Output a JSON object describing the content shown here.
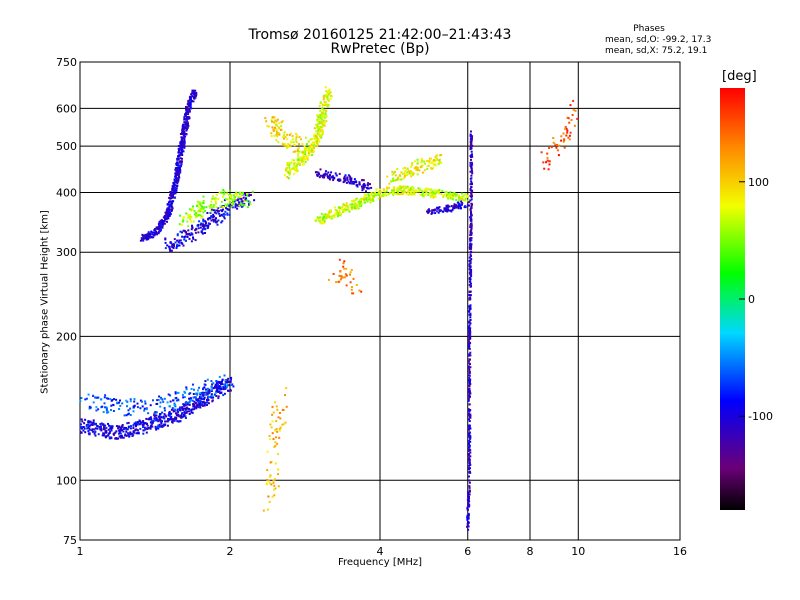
{
  "title": {
    "line1": "Tromsø 20160125 21:42:00–21:43:43",
    "line2": "RwPretec (Bp)"
  },
  "phase_stats": {
    "title": "Phases",
    "line_o": "mean, sd,O: -99.2, 17.3",
    "line_x": "mean, sd,X:  75.2, 19.1"
  },
  "colorbar": {
    "unit_label": "[deg]",
    "tick_labels": [
      "100",
      "0",
      "-100"
    ],
    "tick_values": [
      100,
      0,
      -100
    ],
    "range": [
      -180,
      180
    ],
    "colormap": "rainbow (black-purple-blue-cyan-green-yellow-red)"
  },
  "chart_data": {
    "type": "scatter",
    "xlabel": "Frequency [MHz]",
    "ylabel": "Stationary phase Virtual Height [km]",
    "xscale": "log",
    "yscale": "log",
    "xlim": [
      1,
      16
    ],
    "ylim": [
      75,
      750
    ],
    "x_ticks": [
      1,
      2,
      4,
      6,
      8,
      10,
      16
    ],
    "x_tick_labels": [
      "1",
      "2",
      "4",
      "6",
      "8",
      "10",
      "16"
    ],
    "y_ticks": [
      75,
      100,
      200,
      300,
      400,
      500,
      600,
      750
    ],
    "y_tick_labels": [
      "75",
      "100",
      "200",
      "300",
      "400",
      "500",
      "600",
      "750"
    ],
    "grid": true,
    "color_encodes": "phase [deg]",
    "series": [
      {
        "path": [
          [
            1.0,
            130
          ],
          [
            1.2,
            126
          ],
          [
            1.35,
            130
          ],
          [
            1.6,
            138
          ],
          [
            1.8,
            150
          ],
          [
            2.0,
            160
          ]
        ],
        "phase": -100,
        "spread_x": 0.02,
        "spread_y": 0.035,
        "density": 5
      },
      {
        "path": [
          [
            1.0,
            148
          ],
          [
            1.2,
            142
          ],
          [
            1.4,
            143
          ],
          [
            1.6,
            148
          ],
          [
            1.8,
            155
          ],
          [
            2.0,
            162
          ]
        ],
        "phase": -70,
        "spread_x": 0.03,
        "spread_y": 0.04,
        "density": 2
      },
      {
        "path": [
          [
            1.33,
            320
          ],
          [
            1.42,
            330
          ],
          [
            1.5,
            360
          ],
          [
            1.56,
            420
          ],
          [
            1.6,
            500
          ],
          [
            1.65,
            600
          ],
          [
            1.7,
            650
          ]
        ],
        "phase": -105,
        "spread_x": 0.012,
        "spread_y": 0.015,
        "density": 5
      },
      {
        "path": [
          [
            1.5,
            310
          ],
          [
            1.6,
            320
          ],
          [
            1.7,
            330
          ],
          [
            1.8,
            345
          ],
          [
            1.9,
            360
          ],
          [
            2.0,
            375
          ],
          [
            2.2,
            390
          ]
        ],
        "phase": -100,
        "spread_x": 0.03,
        "spread_y": 0.03,
        "density": 3
      },
      {
        "path": [
          [
            1.62,
            350
          ],
          [
            1.75,
            370
          ],
          [
            1.85,
            385
          ],
          [
            2.0,
            390
          ],
          [
            2.2,
            385
          ]
        ],
        "phase": 60,
        "spread_x": 0.03,
        "spread_y": 0.04,
        "density": 3
      },
      {
        "path": [
          [
            2.6,
            440
          ],
          [
            2.8,
            470
          ],
          [
            3.0,
            520
          ],
          [
            3.05,
            570
          ],
          [
            3.1,
            630
          ],
          [
            3.15,
            650
          ]
        ],
        "phase": 75,
        "spread_x": 0.02,
        "spread_y": 0.03,
        "density": 4
      },
      {
        "path": [
          [
            2.4,
            560
          ],
          [
            2.6,
            520
          ],
          [
            2.8,
            500
          ]
        ],
        "phase": 90,
        "spread_x": 0.03,
        "spread_y": 0.04,
        "density": 3
      },
      {
        "path": [
          [
            3.0,
            350
          ],
          [
            3.3,
            365
          ],
          [
            3.6,
            380
          ],
          [
            4.0,
            400
          ],
          [
            4.5,
            405
          ],
          [
            5.0,
            400
          ],
          [
            5.5,
            395
          ],
          [
            6.0,
            390
          ]
        ],
        "phase": 70,
        "spread_x": 0.02,
        "spread_y": 0.02,
        "density": 4
      },
      {
        "path": [
          [
            4.2,
            430
          ],
          [
            4.6,
            445
          ],
          [
            5.0,
            460
          ],
          [
            5.3,
            470
          ]
        ],
        "phase": 80,
        "spread_x": 0.02,
        "spread_y": 0.03,
        "density": 3
      },
      {
        "path": [
          [
            3.0,
            440
          ],
          [
            3.3,
            430
          ],
          [
            3.6,
            420
          ],
          [
            3.8,
            410
          ]
        ],
        "phase": -110,
        "spread_x": 0.02,
        "spread_y": 0.02,
        "density": 3
      },
      {
        "path": [
          [
            5.0,
            365
          ],
          [
            5.5,
            370
          ],
          [
            6.0,
            380
          ]
        ],
        "phase": -105,
        "spread_x": 0.015,
        "spread_y": 0.015,
        "density": 3
      },
      {
        "path": [
          [
            6.0,
            80
          ],
          [
            6.05,
            100
          ],
          [
            6.05,
            130
          ],
          [
            6.05,
            200
          ],
          [
            6.1,
            400
          ],
          [
            6.1,
            530
          ]
        ],
        "phase": -110,
        "spread_x": 0.004,
        "spread_y": 0.03,
        "density": 2
      },
      {
        "path": [
          [
            2.4,
            90
          ],
          [
            2.5,
            140
          ],
          [
            2.6,
            145
          ]
        ],
        "phase": 110,
        "spread_x": 0.03,
        "spread_y": 0.08,
        "density": 1
      },
      {
        "path": [
          [
            8.5,
            460
          ],
          [
            9.5,
            530
          ],
          [
            9.8,
            600
          ]
        ],
        "phase": 150,
        "spread_x": 0.02,
        "spread_y": 0.05,
        "density": 1
      },
      {
        "path": [
          [
            3.2,
            260
          ],
          [
            3.4,
            280
          ],
          [
            3.6,
            250
          ]
        ],
        "phase": 140,
        "spread_x": 0.03,
        "spread_y": 0.04,
        "density": 1
      }
    ]
  }
}
